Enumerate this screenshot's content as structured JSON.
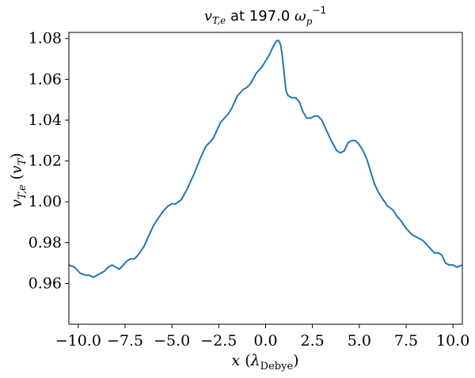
{
  "chart_data": {
    "type": "line",
    "title": "v_{T,e} at 197.0 ω_p^{-1}",
    "xlabel": "x (λ_Debye)",
    "ylabel": "v_{T,e} (v_T)",
    "xlim": [
      -10.5,
      10.5
    ],
    "ylim": [
      0.94,
      1.083
    ],
    "xticks": [
      -10.0,
      -7.5,
      -5.0,
      -2.5,
      0.0,
      2.5,
      5.0,
      7.5,
      10.0
    ],
    "xtick_labels": [
      "−10.0",
      "−7.5",
      "−5.0",
      "−2.5",
      "0.0",
      "2.5",
      "5.0",
      "7.5",
      "10.0"
    ],
    "yticks": [
      0.96,
      0.98,
      1.0,
      1.02,
      1.04,
      1.06,
      1.08
    ],
    "ytick_labels": [
      "0.96",
      "0.98",
      "1.00",
      "1.02",
      "1.04",
      "1.06",
      "1.08"
    ],
    "grid": false,
    "series": [
      {
        "color": "#1f77b4",
        "x": [
          -10.5,
          -10.2,
          -9.9,
          -9.6,
          -9.4,
          -9.2,
          -9.0,
          -8.8,
          -8.6,
          -8.4,
          -8.2,
          -8.0,
          -7.8,
          -7.6,
          -7.4,
          -7.2,
          -7.0,
          -6.8,
          -6.5,
          -6.2,
          -6.0,
          -5.8,
          -5.5,
          -5.2,
          -5.0,
          -4.8,
          -4.5,
          -4.2,
          -4.0,
          -3.8,
          -3.5,
          -3.2,
          -3.0,
          -2.8,
          -2.6,
          -2.4,
          -2.2,
          -2.0,
          -1.8,
          -1.5,
          -1.2,
          -1.0,
          -0.8,
          -0.5,
          -0.2,
          0.0,
          0.2,
          0.4,
          0.6,
          0.7,
          0.8,
          0.9,
          1.0,
          1.1,
          1.2,
          1.4,
          1.6,
          1.8,
          2.0,
          2.2,
          2.4,
          2.6,
          2.8,
          3.0,
          3.2,
          3.5,
          3.8,
          4.0,
          4.2,
          4.4,
          4.6,
          4.8,
          5.0,
          5.2,
          5.4,
          5.6,
          5.8,
          6.0,
          6.2,
          6.5,
          6.8,
          7.0,
          7.2,
          7.5,
          7.8,
          8.0,
          8.2,
          8.4,
          8.6,
          8.8,
          9.0,
          9.2,
          9.4,
          9.6,
          9.8,
          10.0,
          10.2,
          10.5
        ],
        "values": [
          0.969,
          0.968,
          0.965,
          0.964,
          0.964,
          0.963,
          0.964,
          0.965,
          0.966,
          0.968,
          0.969,
          0.968,
          0.967,
          0.969,
          0.971,
          0.972,
          0.972,
          0.974,
          0.978,
          0.984,
          0.988,
          0.991,
          0.995,
          0.998,
          0.999,
          0.999,
          1.001,
          1.006,
          1.01,
          1.014,
          1.021,
          1.027,
          1.029,
          1.031,
          1.035,
          1.039,
          1.041,
          1.043,
          1.046,
          1.052,
          1.055,
          1.056,
          1.058,
          1.063,
          1.066,
          1.069,
          1.072,
          1.076,
          1.079,
          1.079,
          1.077,
          1.071,
          1.062,
          1.054,
          1.052,
          1.051,
          1.051,
          1.049,
          1.044,
          1.041,
          1.041,
          1.042,
          1.042,
          1.04,
          1.036,
          1.03,
          1.025,
          1.024,
          1.025,
          1.029,
          1.03,
          1.03,
          1.028,
          1.025,
          1.021,
          1.015,
          1.009,
          1.005,
          1.002,
          0.998,
          0.996,
          0.993,
          0.991,
          0.987,
          0.984,
          0.983,
          0.982,
          0.981,
          0.979,
          0.977,
          0.975,
          0.975,
          0.974,
          0.97,
          0.969,
          0.969,
          0.968,
          0.969
        ]
      }
    ]
  }
}
